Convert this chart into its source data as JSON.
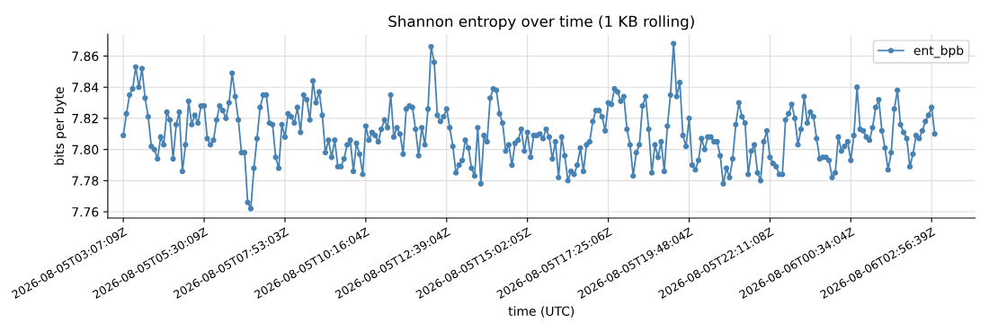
{
  "chart_data": {
    "type": "line",
    "title": "Shannon entropy over time (1 KB rolling)",
    "xlabel": "time (UTC)",
    "ylabel": "bits per byte",
    "categories": [
      "2026-08-05T03:07:09Z",
      null,
      null,
      null,
      null,
      null,
      null,
      null,
      null,
      null,
      null,
      null,
      null,
      null,
      null,
      null,
      null,
      null,
      null,
      null,
      null,
      null,
      null,
      null,
      null,
      null,
      "2026-08-05T05:30:09Z",
      null,
      null,
      null,
      null,
      null,
      null,
      null,
      null,
      null,
      null,
      null,
      null,
      null,
      null,
      null,
      null,
      null,
      null,
      null,
      null,
      null,
      null,
      null,
      null,
      null,
      "2026-08-05T07:53:03Z",
      null,
      null,
      null,
      null,
      null,
      null,
      null,
      null,
      null,
      null,
      null,
      null,
      null,
      null,
      null,
      null,
      null,
      null,
      null,
      null,
      null,
      null,
      null,
      null,
      null,
      "2026-08-05T10:16:04Z",
      null,
      null,
      null,
      null,
      null,
      null,
      null,
      null,
      null,
      null,
      null,
      null,
      null,
      null,
      null,
      null,
      null,
      null,
      null,
      null,
      null,
      null,
      null,
      null,
      null,
      "2026-08-05T12:39:04Z",
      null,
      null,
      null,
      null,
      null,
      null,
      null,
      null,
      null,
      null,
      null,
      null,
      null,
      null,
      null,
      null,
      null,
      null,
      null,
      null,
      null,
      null,
      null,
      null,
      null,
      "2026-08-05T15:02:05Z",
      null,
      null,
      null,
      null,
      null,
      null,
      null,
      null,
      null,
      null,
      null,
      null,
      null,
      null,
      null,
      null,
      null,
      null,
      null,
      null,
      null,
      null,
      null,
      null,
      null,
      "2026-08-05T17:25:06Z",
      null,
      null,
      null,
      null,
      null,
      null,
      null,
      null,
      null,
      null,
      null,
      null,
      null,
      null,
      null,
      null,
      null,
      null,
      null,
      null,
      null,
      null,
      null,
      null,
      null,
      "2026-08-05T19:48:04Z",
      null,
      null,
      null,
      null,
      null,
      null,
      null,
      null,
      null,
      null,
      null,
      null,
      null,
      null,
      null,
      null,
      null,
      null,
      null,
      null,
      null,
      null,
      null,
      null,
      null,
      "2026-08-05T22:11:08Z",
      null,
      null,
      null,
      null,
      null,
      null,
      null,
      null,
      null,
      null,
      null,
      null,
      null,
      null,
      null,
      null,
      null,
      null,
      null,
      null,
      null,
      null,
      null,
      null,
      null,
      "2026-08-06T00:34:04Z",
      null,
      null,
      null,
      null,
      null,
      null,
      null,
      null,
      null,
      null,
      null,
      null,
      null,
      null,
      null,
      null,
      null,
      null,
      null,
      null,
      null,
      null,
      null,
      null,
      null,
      "2026-08-06T02:56:39Z",
      null
    ],
    "series": [
      {
        "name": "ent_bpb",
        "color": "#4682b4",
        "values": [
          7.809,
          7.823,
          7.835,
          7.839,
          7.853,
          7.84,
          7.852,
          7.833,
          7.821,
          7.802,
          7.8,
          7.794,
          7.808,
          7.803,
          7.824,
          7.819,
          7.794,
          7.816,
          7.824,
          7.786,
          7.803,
          7.831,
          7.816,
          7.822,
          7.817,
          7.828,
          7.828,
          7.807,
          7.803,
          7.806,
          7.819,
          7.828,
          7.825,
          7.82,
          7.83,
          7.849,
          7.834,
          7.819,
          7.798,
          7.798,
          7.766,
          7.762,
          7.788,
          7.807,
          7.827,
          7.835,
          7.835,
          7.817,
          7.816,
          7.795,
          7.788,
          7.816,
          7.808,
          7.823,
          7.821,
          7.817,
          7.827,
          7.811,
          7.835,
          7.832,
          7.819,
          7.844,
          7.83,
          7.837,
          7.822,
          7.798,
          7.806,
          7.795,
          7.806,
          7.789,
          7.789,
          7.794,
          7.803,
          7.806,
          7.786,
          7.804,
          7.797,
          7.784,
          7.815,
          7.806,
          7.811,
          7.809,
          7.805,
          7.813,
          7.819,
          7.814,
          7.835,
          7.808,
          7.814,
          7.81,
          7.797,
          7.826,
          7.828,
          7.827,
          7.813,
          7.796,
          7.814,
          7.803,
          7.826,
          7.866,
          7.856,
          7.822,
          7.818,
          7.821,
          7.826,
          7.814,
          7.802,
          7.785,
          7.79,
          7.793,
          7.806,
          7.801,
          7.788,
          7.783,
          7.814,
          7.778,
          7.809,
          7.805,
          7.833,
          7.839,
          7.838,
          7.823,
          7.817,
          7.799,
          7.803,
          7.79,
          7.804,
          7.806,
          7.813,
          7.799,
          7.811,
          7.795,
          7.809,
          7.809,
          7.81,
          7.807,
          7.813,
          7.808,
          7.794,
          7.805,
          7.782,
          7.808,
          7.796,
          7.78,
          7.786,
          7.784,
          7.79,
          7.801,
          7.786,
          7.803,
          7.805,
          7.818,
          7.825,
          7.825,
          7.821,
          7.812,
          7.83,
          7.829,
          7.839,
          7.837,
          7.831,
          7.834,
          7.813,
          7.803,
          7.783,
          7.798,
          7.803,
          7.828,
          7.834,
          7.813,
          7.785,
          7.803,
          7.795,
          7.805,
          7.786,
          7.815,
          7.835,
          7.868,
          7.834,
          7.843,
          7.809,
          7.802,
          7.82,
          7.79,
          7.787,
          7.793,
          7.807,
          7.8,
          7.808,
          7.808,
          7.805,
          7.805,
          7.796,
          7.778,
          7.788,
          7.782,
          7.794,
          7.816,
          7.83,
          7.821,
          7.817,
          7.784,
          7.799,
          7.803,
          7.785,
          7.78,
          7.805,
          7.812,
          7.795,
          7.791,
          7.789,
          7.784,
          7.784,
          7.819,
          7.823,
          7.829,
          7.82,
          7.803,
          7.813,
          7.834,
          7.817,
          7.824,
          7.821,
          7.807,
          7.794,
          7.795,
          7.795,
          7.793,
          7.782,
          7.785,
          7.808,
          7.799,
          7.802,
          7.805,
          7.793,
          7.809,
          7.84,
          7.813,
          7.812,
          7.808,
          7.806,
          7.814,
          7.827,
          7.832,
          7.812,
          7.801,
          7.787,
          7.798,
          7.826,
          7.838,
          7.816,
          7.811,
          7.807,
          7.789,
          7.797,
          7.809,
          7.807,
          7.812,
          7.818,
          7.822,
          7.827,
          7.81
        ]
      }
    ],
    "ylim": [
      7.756,
      7.874
    ],
    "yticks": [
      7.76,
      7.78,
      {
        "value": 7.8,
        "label": "7.80"
      },
      7.82,
      7.84,
      7.86
    ],
    "grid": true,
    "legend": "top right",
    "marker": "circle",
    "line_style": "solid"
  }
}
